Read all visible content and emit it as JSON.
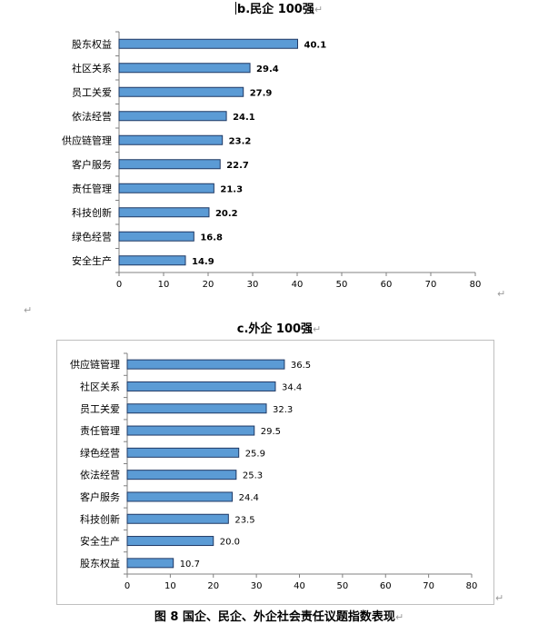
{
  "chart_data": [
    {
      "type": "bar",
      "orientation": "horizontal",
      "title": "b.民企 100强",
      "categories": [
        "股东权益",
        "社区关系",
        "员工关爱",
        "依法经营",
        "供应链管理",
        "客户服务",
        "责任管理",
        "科技创新",
        "绿色经营",
        "安全生产"
      ],
      "values": [
        40.1,
        29.4,
        27.9,
        24.1,
        23.2,
        22.7,
        21.3,
        20.2,
        16.8,
        14.9
      ],
      "value_labels": [
        "40.1",
        "29.4",
        "27.9",
        "24.1",
        "23.2",
        "22.7",
        "21.3",
        "20.2",
        "16.8",
        "14.9"
      ],
      "xlim": [
        0,
        80
      ],
      "xticks": [
        "0",
        "10",
        "20",
        "30",
        "40",
        "50",
        "60",
        "70",
        "80"
      ],
      "grid": false,
      "bar_color": "#5b9bd5",
      "bar_edge_color": "#1f3864"
    },
    {
      "type": "bar",
      "orientation": "horizontal",
      "title": "c.外企 100强",
      "categories": [
        "供应链管理",
        "社区关系",
        "员工关爱",
        "责任管理",
        "绿色经营",
        "依法经营",
        "客户服务",
        "科技创新",
        "安全生产",
        "股东权益"
      ],
      "values": [
        36.5,
        34.4,
        32.3,
        29.5,
        25.9,
        25.3,
        24.4,
        23.5,
        20.0,
        10.7
      ],
      "value_labels": [
        "36.5",
        "34.4",
        "32.3",
        "29.5",
        "25.9",
        "25.3",
        "24.4",
        "23.5",
        "20.0",
        "10.7"
      ],
      "xlim": [
        0,
        80
      ],
      "xticks": [
        "0",
        "10",
        "20",
        "30",
        "40",
        "50",
        "60",
        "70",
        "80"
      ],
      "grid": false,
      "bar_color": "#5b9bd5",
      "bar_edge_color": "#1f3864"
    }
  ],
  "caption": "图 8    国企、民企、外企社会责任议题指数表现",
  "paragraph_mark": "↵"
}
